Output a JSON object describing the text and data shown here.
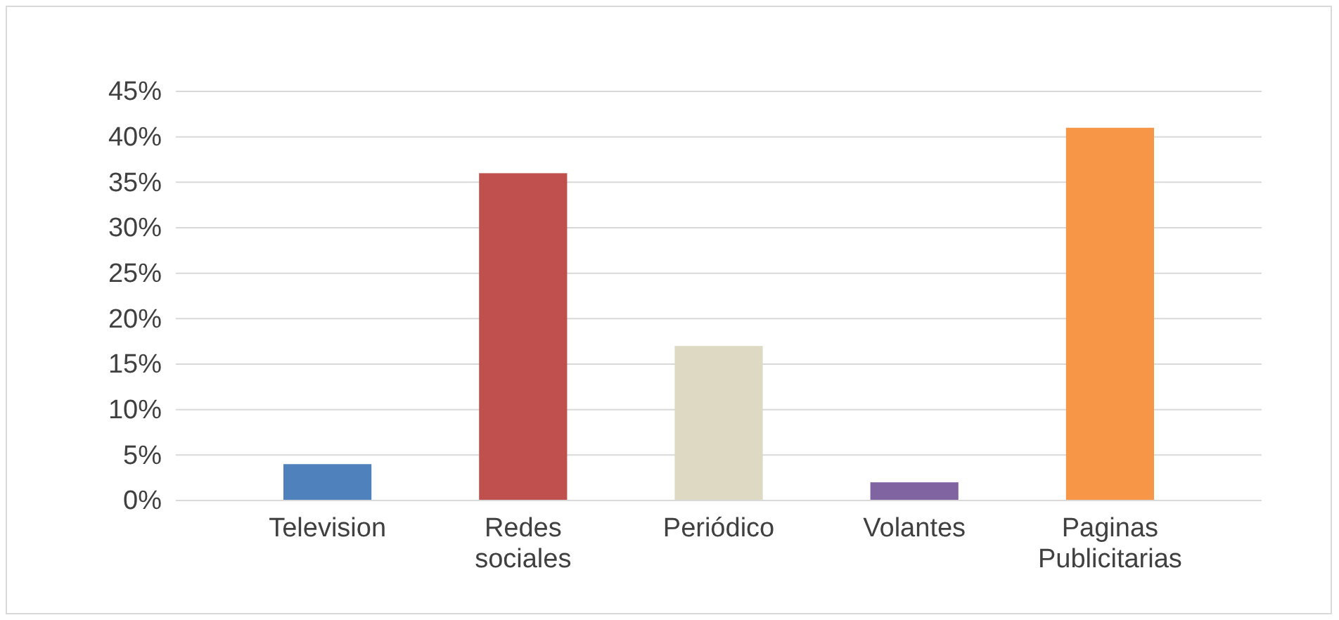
{
  "chart_data": {
    "type": "bar",
    "categories": [
      "Television",
      "Redes sociales",
      "Periódico",
      "Volantes",
      "Paginas Publicitarias"
    ],
    "values": [
      4,
      36,
      17,
      2,
      41
    ],
    "colors": [
      "#4f81bd",
      "#c0504d",
      "#ddd9c3",
      "#8064a2",
      "#f79646"
    ],
    "ylim": [
      0,
      45
    ],
    "yticks": [
      {
        "value": 0,
        "label": "0%"
      },
      {
        "value": 5,
        "label": "5%"
      },
      {
        "value": 10,
        "label": "10%"
      },
      {
        "value": 15,
        "label": "15%"
      },
      {
        "value": 20,
        "label": "20%"
      },
      {
        "value": 25,
        "label": "25%"
      },
      {
        "value": 30,
        "label": "30%"
      },
      {
        "value": 35,
        "label": "35%"
      },
      {
        "value": 40,
        "label": "40%"
      },
      {
        "value": 45,
        "label": "45%"
      }
    ],
    "grid": "y"
  }
}
